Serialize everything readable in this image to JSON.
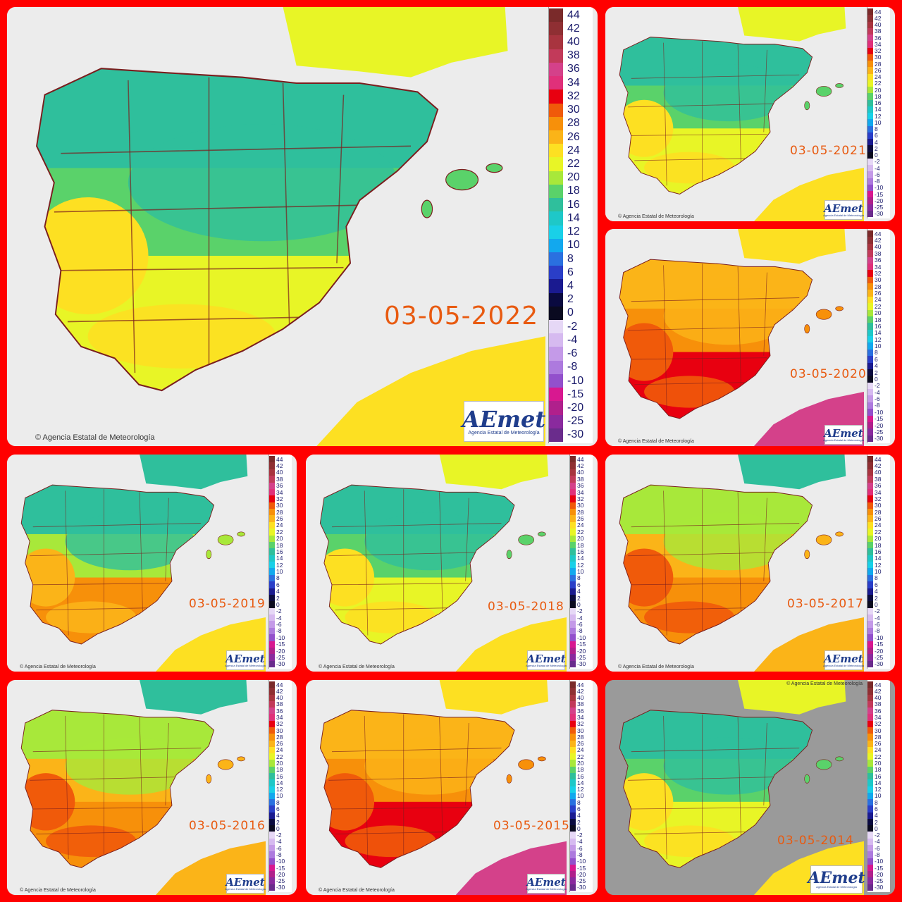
{
  "legend": {
    "labels": [
      "44",
      "42",
      "40",
      "38",
      "36",
      "34",
      "32",
      "30",
      "28",
      "26",
      "24",
      "22",
      "20",
      "18",
      "16",
      "14",
      "12",
      "10",
      "8",
      "6",
      "4",
      "2",
      "0",
      "-2",
      "-4",
      "-6",
      "-8",
      "-10",
      "-15",
      "-20",
      "-25",
      "-30"
    ],
    "colors": [
      "#7a2a2a",
      "#8f2f33",
      "#a8343f",
      "#c23a5a",
      "#d4418a",
      "#e0307a",
      "#e80010",
      "#f05a0a",
      "#f7900a",
      "#fbb418",
      "#fde022",
      "#e8f526",
      "#a8e83a",
      "#5ad26a",
      "#2fbf9c",
      "#1ec8c8",
      "#19d0e8",
      "#12a8ee",
      "#2a70e0",
      "#2a3ec8",
      "#1a1a90",
      "#0a0a40",
      "#0a0a20",
      "#e6d8f6",
      "#d6baf0",
      "#c49ae8",
      "#ad7ade",
      "#9250cc",
      "#d81890",
      "#b0208c",
      "#8a2a9e",
      "#6a2c8c"
    ]
  },
  "credit": "Agencia Estatal de Meteorología",
  "logo": {
    "name": "AEmet",
    "subtitle": "Agencia Estatal de Meteorología"
  },
  "panels": [
    {
      "id": "p2022",
      "date": "03-05-2022",
      "theme": "cool"
    },
    {
      "id": "p2021",
      "date": "03-05-2021",
      "theme": "cool"
    },
    {
      "id": "p2020",
      "date": "03-05-2020",
      "theme": "hot"
    },
    {
      "id": "p2019",
      "date": "03-05-2019",
      "theme": "mild"
    },
    {
      "id": "p2018",
      "date": "03-05-2018",
      "theme": "cool"
    },
    {
      "id": "p2017",
      "date": "03-05-2017",
      "theme": "warm"
    },
    {
      "id": "p2016",
      "date": "03-05-2016",
      "theme": "warm"
    },
    {
      "id": "p2015",
      "date": "03-05-2015",
      "theme": "hot"
    },
    {
      "id": "p2014",
      "date": "03-05-2014",
      "theme": "cool"
    }
  ],
  "theme_colors": {
    "cool": {
      "north": "#2fbf9c",
      "center": "#5ad26a",
      "south": "#e8f526",
      "coast": "#fde022",
      "africa": "#fde022",
      "france": "#e8f526"
    },
    "mild": {
      "north": "#2fbf9c",
      "center": "#a8e83a",
      "south": "#f7900a",
      "coast": "#fbb418",
      "africa": "#fde022",
      "france": "#2fbf9c"
    },
    "warm": {
      "north": "#a8e83a",
      "center": "#fbb418",
      "south": "#f7900a",
      "coast": "#f05a0a",
      "africa": "#fbb418",
      "france": "#2fbf9c"
    },
    "hot": {
      "north": "#fbb418",
      "center": "#f7900a",
      "south": "#e80010",
      "coast": "#f05a0a",
      "africa": "#d4418a",
      "france": "#fde022"
    }
  }
}
